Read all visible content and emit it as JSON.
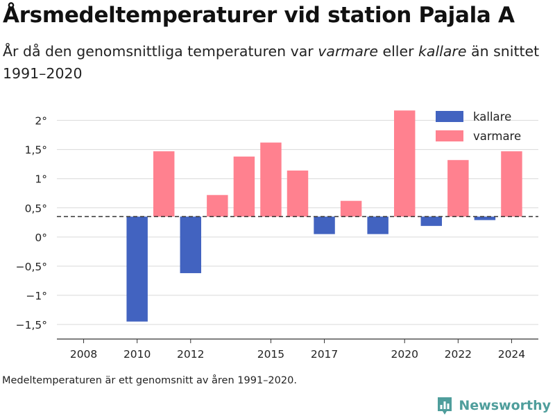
{
  "header": {
    "title": "Årsmedeltemperaturer vid station Pajala A",
    "subtitle_parts": [
      "År då den genomsnittliga temperaturen var ",
      "varmare",
      " eller ",
      "kallare",
      " än snittet 1991–2020"
    ]
  },
  "footnote": "Medeltemperaturen är ett genomsnitt av åren 1991–2020.",
  "brand": {
    "name": "Newsworthy",
    "icon": "newsworthy-logo-icon",
    "color": "#4f9e9c"
  },
  "chart_data": {
    "type": "bar",
    "baseline": 0.35,
    "x": [
      2010,
      2011,
      2012,
      2013,
      2014,
      2015,
      2016,
      2017,
      2018,
      2019,
      2020,
      2021,
      2022,
      2023,
      2024
    ],
    "values": [
      -1.45,
      1.47,
      -0.62,
      0.72,
      1.38,
      1.62,
      1.14,
      0.05,
      0.62,
      0.05,
      2.17,
      0.19,
      1.32,
      0.29,
      1.47
    ],
    "series": [
      {
        "name": "kallare",
        "color": "#4263c0"
      },
      {
        "name": "varmare",
        "color": "#ff818f"
      }
    ],
    "xlim": [
      2007,
      2025
    ],
    "ylim": [
      -1.75,
      2.4
    ],
    "x_ticks": [
      2008,
      2010,
      2012,
      2015,
      2017,
      2020,
      2022,
      2024
    ],
    "y_ticks": [
      -1.5,
      -1,
      -0.5,
      0,
      0.5,
      1,
      1.5,
      2
    ],
    "y_tick_labels": [
      "−1,5°",
      "−1°",
      "−0,5°",
      "0°",
      "0,5°",
      "1°",
      "1,5°",
      "2°"
    ],
    "grid": true,
    "legend_position": "top-right"
  }
}
